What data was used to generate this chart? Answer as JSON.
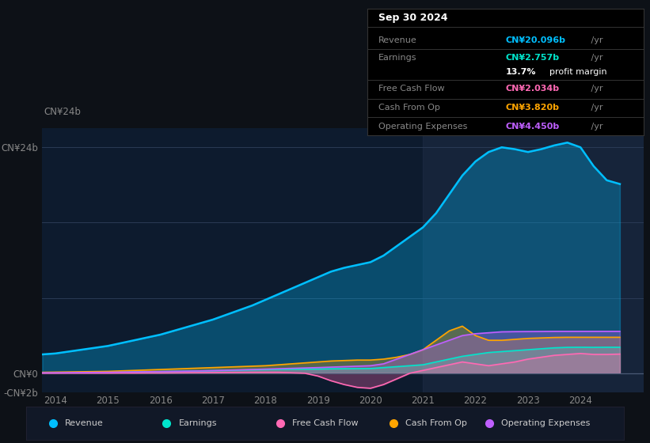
{
  "background_color": "#0d1117",
  "chart_bg_color": "#0d1b2e",
  "years": [
    2013.75,
    2014.0,
    2014.25,
    2014.5,
    2014.75,
    2015.0,
    2015.25,
    2015.5,
    2015.75,
    2016.0,
    2016.25,
    2016.5,
    2016.75,
    2017.0,
    2017.25,
    2017.5,
    2017.75,
    2018.0,
    2018.25,
    2018.5,
    2018.75,
    2019.0,
    2019.25,
    2019.5,
    2019.75,
    2020.0,
    2020.25,
    2020.5,
    2020.75,
    2021.0,
    2021.25,
    2021.5,
    2021.75,
    2022.0,
    2022.25,
    2022.5,
    2022.75,
    2023.0,
    2023.25,
    2023.5,
    2023.75,
    2024.0,
    2024.25,
    2024.5,
    2024.75
  ],
  "revenue": [
    2.0,
    2.1,
    2.3,
    2.5,
    2.7,
    2.9,
    3.2,
    3.5,
    3.8,
    4.1,
    4.5,
    4.9,
    5.3,
    5.7,
    6.2,
    6.7,
    7.2,
    7.8,
    8.4,
    9.0,
    9.6,
    10.2,
    10.8,
    11.2,
    11.5,
    11.8,
    12.5,
    13.5,
    14.5,
    15.5,
    17.0,
    19.0,
    21.0,
    22.5,
    23.5,
    24.0,
    23.8,
    23.5,
    23.8,
    24.2,
    24.5,
    24.0,
    22.0,
    20.5,
    20.1
  ],
  "earnings": [
    0.05,
    0.06,
    0.07,
    0.08,
    0.09,
    0.1,
    0.12,
    0.14,
    0.16,
    0.18,
    0.2,
    0.22,
    0.25,
    0.28,
    0.3,
    0.33,
    0.36,
    0.38,
    0.4,
    0.42,
    0.44,
    0.45,
    0.47,
    0.48,
    0.49,
    0.5,
    0.6,
    0.7,
    0.8,
    0.9,
    1.2,
    1.5,
    1.8,
    2.0,
    2.2,
    2.3,
    2.4,
    2.5,
    2.6,
    2.7,
    2.75,
    2.76,
    2.75,
    2.76,
    2.757
  ],
  "free_cash_flow": [
    0.0,
    0.0,
    0.01,
    0.01,
    0.01,
    0.01,
    0.02,
    0.02,
    0.03,
    0.03,
    0.04,
    0.05,
    0.06,
    0.07,
    0.08,
    0.09,
    0.1,
    0.1,
    0.1,
    0.05,
    0.0,
    -0.3,
    -0.8,
    -1.2,
    -1.5,
    -1.6,
    -1.2,
    -0.6,
    0.0,
    0.3,
    0.6,
    0.9,
    1.2,
    1.0,
    0.8,
    1.0,
    1.2,
    1.5,
    1.7,
    1.9,
    2.0,
    2.1,
    2.0,
    2.0,
    2.034
  ],
  "cash_from_op": [
    0.1,
    0.12,
    0.14,
    0.16,
    0.18,
    0.2,
    0.25,
    0.3,
    0.35,
    0.4,
    0.45,
    0.5,
    0.55,
    0.6,
    0.65,
    0.7,
    0.75,
    0.8,
    0.9,
    1.0,
    1.1,
    1.2,
    1.3,
    1.35,
    1.4,
    1.4,
    1.5,
    1.7,
    2.0,
    2.5,
    3.5,
    4.5,
    5.0,
    4.0,
    3.5,
    3.5,
    3.6,
    3.7,
    3.75,
    3.8,
    3.82,
    3.82,
    3.82,
    3.82,
    3.82
  ],
  "operating_expenses": [
    0.05,
    0.06,
    0.07,
    0.08,
    0.09,
    0.1,
    0.12,
    0.14,
    0.16,
    0.18,
    0.2,
    0.22,
    0.25,
    0.28,
    0.32,
    0.36,
    0.4,
    0.44,
    0.48,
    0.52,
    0.56,
    0.6,
    0.65,
    0.7,
    0.75,
    0.8,
    1.0,
    1.5,
    2.0,
    2.5,
    3.0,
    3.5,
    4.0,
    4.2,
    4.3,
    4.4,
    4.42,
    4.43,
    4.44,
    4.45,
    4.45,
    4.45,
    4.45,
    4.45,
    4.45
  ],
  "ylim": [
    -2,
    26
  ],
  "yticks": [
    -2,
    0,
    8,
    16,
    24
  ],
  "ytick_labels": [
    "-CN¥2b",
    "CN¥0",
    "",
    "",
    "CN¥24b"
  ],
  "xlim": [
    2013.75,
    2025.2
  ],
  "xticks": [
    2014,
    2015,
    2016,
    2017,
    2018,
    2019,
    2020,
    2021,
    2022,
    2023,
    2024
  ],
  "colors": {
    "revenue": "#00bfff",
    "earnings": "#00e5cc",
    "free_cash_flow": "#ff69b4",
    "cash_from_op": "#ffa500",
    "operating_expenses": "#bf5fff"
  },
  "legend": [
    {
      "label": "Revenue",
      "color": "#00bfff"
    },
    {
      "label": "Earnings",
      "color": "#00e5cc"
    },
    {
      "label": "Free Cash Flow",
      "color": "#ff69b4"
    },
    {
      "label": "Cash From Op",
      "color": "#ffa500"
    },
    {
      "label": "Operating Expenses",
      "color": "#bf5fff"
    }
  ],
  "info_box": {
    "title": "Sep 30 2024",
    "rows": [
      {
        "label": "Revenue",
        "value": "CN¥20.096b",
        "value_color": "#00bfff",
        "suffix": " /yr",
        "extra": ""
      },
      {
        "label": "Earnings",
        "value": "CN¥2.757b",
        "value_color": "#00e5cc",
        "suffix": " /yr",
        "extra": "13.7% profit margin"
      },
      {
        "label": "Free Cash Flow",
        "value": "CN¥2.034b",
        "value_color": "#ff69b4",
        "suffix": " /yr",
        "extra": ""
      },
      {
        "label": "Cash From Op",
        "value": "CN¥3.820b",
        "value_color": "#ffa500",
        "suffix": " /yr",
        "extra": ""
      },
      {
        "label": "Operating Expenses",
        "value": "CN¥4.450b",
        "value_color": "#bf5fff",
        "suffix": " /yr",
        "extra": ""
      }
    ]
  }
}
